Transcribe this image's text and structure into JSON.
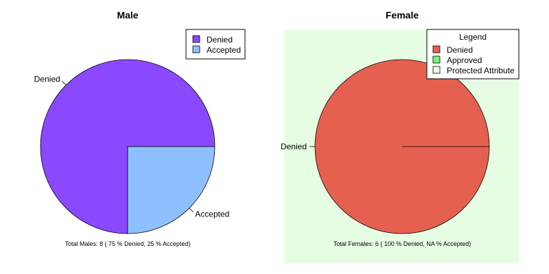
{
  "chart_data": [
    {
      "type": "pie",
      "title": "Male",
      "categories": [
        "Denied",
        "Accepted"
      ],
      "values": [
        6,
        2
      ],
      "colors": [
        "#8a48ff",
        "#8ec0ff"
      ],
      "legend": {
        "placement": "top-right",
        "title": "",
        "entries": [
          {
            "label": "Denied",
            "color": "#8a48ff"
          },
          {
            "label": "Accepted",
            "color": "#8ec0ff"
          }
        ]
      },
      "footnote": "Total Males: 8 ( 75 % Denied,  25 % Accepted)",
      "background": "#ffffff"
    },
    {
      "type": "pie",
      "title": "Female",
      "categories": [
        "Denied"
      ],
      "values": [
        6
      ],
      "colors": [
        "#e5604f"
      ],
      "legend": {
        "placement": "top-right",
        "title": "Legend",
        "entries": [
          {
            "label": "Denied",
            "color": "#e5604f"
          },
          {
            "label": "Approved",
            "color": "#7ef07e"
          },
          {
            "label": "Protected Attribute",
            "color": "#e6fde4"
          }
        ]
      },
      "footnote": "Total Females: 6 ( 100 % Denied,  NA % Accepted)",
      "background": "#e6fde4"
    }
  ]
}
